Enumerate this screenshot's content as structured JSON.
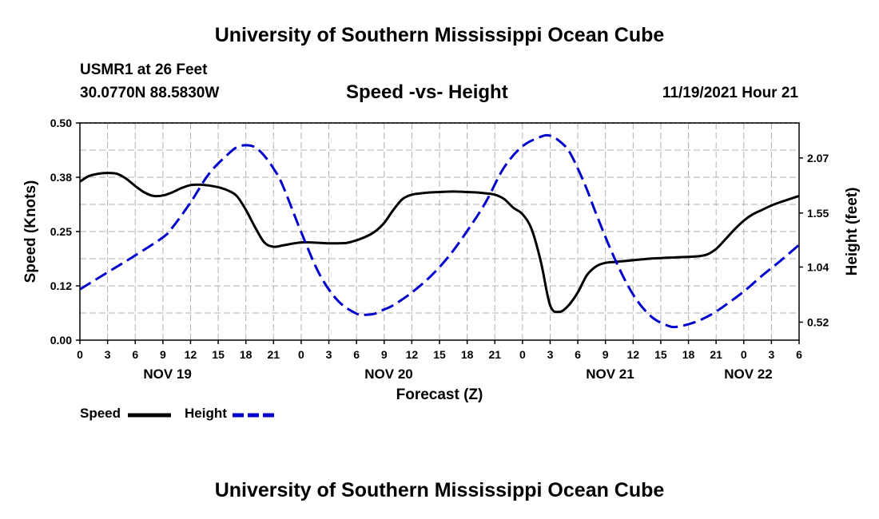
{
  "page": {
    "title": "University of Southern Mississippi Ocean Cube",
    "footer_title": "University of Southern Mississippi Ocean Cube",
    "station": "USMR1 at 26 Feet",
    "coords": "30.0770N  88.5830W",
    "chart_title": "Speed -vs- Height",
    "datetime": "11/19/2021 Hour 21"
  },
  "colors": {
    "speed": "#000000",
    "height": "#0000cc",
    "grid": "#b0b0b0"
  },
  "chart_data": {
    "type": "line",
    "title": "Speed -vs- Height",
    "xlabel": "Forecast (Z)",
    "ylabel": "Speed (Knots)",
    "y2label": "Height (feet)",
    "x_range_hours": [
      0,
      78
    ],
    "ylim": [
      0,
      0.5
    ],
    "y2lim": [
      0.35,
      2.4
    ],
    "y_ticks": [
      "0.00",
      "0.12",
      "0.25",
      "0.38",
      "0.50"
    ],
    "y_tick_values": [
      0,
      0.125,
      0.25,
      0.375,
      0.5
    ],
    "y2_ticks": [
      "0.52",
      "1.04",
      "1.55",
      "2.07"
    ],
    "y2_tick_values": [
      0.52,
      1.04,
      1.55,
      2.07
    ],
    "x_tick_labels": [
      "0",
      "3",
      "6",
      "9",
      "12",
      "15",
      "18",
      "21",
      "0",
      "3",
      "6",
      "9",
      "12",
      "15",
      "18",
      "21",
      "0",
      "3",
      "6",
      "9",
      "12",
      "15",
      "18",
      "21",
      "0",
      "3",
      "6"
    ],
    "day_labels": [
      {
        "label": "NOV 19",
        "hour": 9.5
      },
      {
        "label": "NOV 20",
        "hour": 33.5
      },
      {
        "label": "NOV 21",
        "hour": 57.5
      },
      {
        "label": "NOV 22",
        "hour": 72.5
      }
    ],
    "series": [
      {
        "name": "Speed",
        "axis": "left",
        "style": "solid",
        "x": [
          0,
          1,
          2,
          3,
          4,
          5,
          6,
          7,
          8,
          9,
          10,
          11,
          12,
          13,
          14,
          15,
          16,
          17,
          18,
          19,
          20,
          21,
          22,
          23,
          24,
          25,
          26,
          27,
          28,
          29,
          30,
          31,
          32,
          33,
          34,
          35,
          36,
          37,
          38,
          39,
          40,
          41,
          42,
          43,
          44,
          45,
          46,
          47,
          48,
          49,
          50,
          51,
          52,
          53,
          54,
          55,
          56,
          57,
          58,
          59,
          60,
          61,
          62,
          63,
          64,
          65,
          66,
          67,
          68,
          69,
          70,
          71,
          72,
          73,
          74,
          75,
          76,
          77,
          78
        ],
        "values": [
          0.365,
          0.378,
          0.383,
          0.385,
          0.383,
          0.372,
          0.355,
          0.34,
          0.332,
          0.333,
          0.34,
          0.35,
          0.357,
          0.358,
          0.356,
          0.352,
          0.345,
          0.332,
          0.3,
          0.26,
          0.225,
          0.215,
          0.218,
          0.222,
          0.225,
          0.225,
          0.224,
          0.223,
          0.223,
          0.224,
          0.23,
          0.238,
          0.25,
          0.27,
          0.3,
          0.325,
          0.335,
          0.338,
          0.34,
          0.341,
          0.342,
          0.342,
          0.341,
          0.34,
          0.338,
          0.335,
          0.325,
          0.305,
          0.29,
          0.255,
          0.18,
          0.08,
          0.065,
          0.08,
          0.11,
          0.15,
          0.17,
          0.178,
          0.18,
          0.182,
          0.184,
          0.186,
          0.188,
          0.189,
          0.19,
          0.191,
          0.192,
          0.193,
          0.197,
          0.21,
          0.232,
          0.255,
          0.275,
          0.29,
          0.3,
          0.31,
          0.318,
          0.325,
          0.332
        ]
      },
      {
        "name": "Height",
        "axis": "right",
        "style": "dashed",
        "x": [
          0,
          3,
          6,
          9,
          10,
          12,
          14,
          16,
          17,
          18,
          19,
          20,
          21,
          22,
          24,
          26,
          28,
          30,
          31,
          32,
          33,
          34,
          36,
          38,
          40,
          42,
          44,
          46,
          48,
          50,
          51,
          52,
          53,
          54,
          55,
          56,
          58,
          60,
          62,
          64,
          65,
          66,
          67,
          68,
          69,
          70,
          72,
          74,
          76,
          78
        ],
        "values": [
          0.83,
          0.99,
          1.15,
          1.32,
          1.41,
          1.65,
          1.92,
          2.1,
          2.17,
          2.19,
          2.17,
          2.09,
          1.97,
          1.81,
          1.37,
          0.97,
          0.72,
          0.6,
          0.59,
          0.6,
          0.64,
          0.68,
          0.8,
          0.95,
          1.14,
          1.38,
          1.65,
          1.98,
          2.18,
          2.27,
          2.28,
          2.23,
          2.14,
          1.97,
          1.77,
          1.54,
          1.12,
          0.78,
          0.57,
          0.48,
          0.48,
          0.5,
          0.53,
          0.57,
          0.62,
          0.68,
          0.81,
          0.96,
          1.1,
          1.25
        ]
      }
    ]
  },
  "legend": {
    "speed_label": "Speed",
    "height_label": "Height"
  }
}
